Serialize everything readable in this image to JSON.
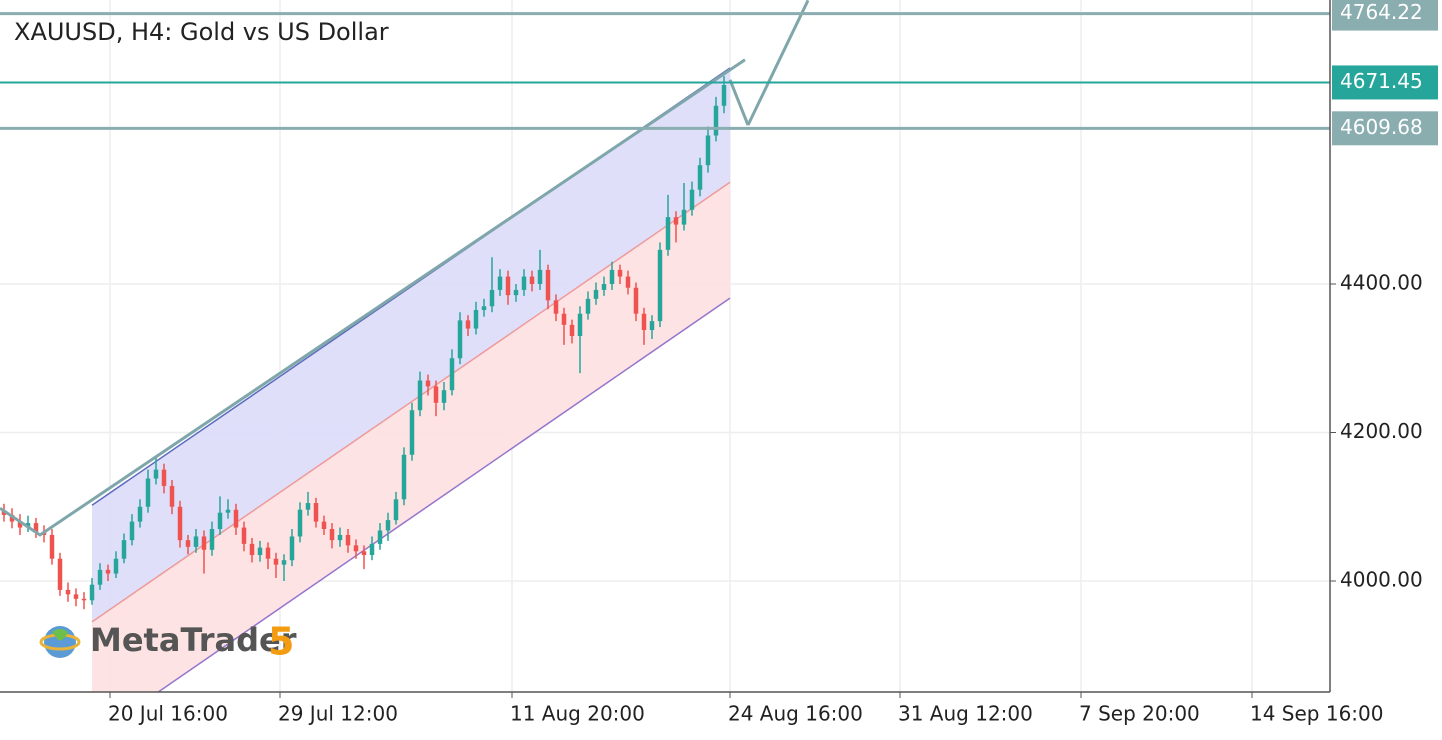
{
  "chart_data": {
    "type": "candlestick",
    "title": "XAUUSD, H4: Gold vs US Dollar",
    "logo": {
      "text": "MetaTrader",
      "number": "5"
    },
    "up_color": "#26a69a",
    "down_color": "#ef5350",
    "grid": true,
    "ylim": [
      3850.5,
      4782.5
    ],
    "yticks": [
      {
        "value": 4000,
        "label": "4000.00"
      },
      {
        "value": 4200,
        "label": "4200.00"
      },
      {
        "value": 4400,
        "label": "4400.00"
      }
    ],
    "xlim": [
      0,
      166.25
    ],
    "xticks": [
      {
        "value": 13.75,
        "label": "20 Jul 16:00"
      },
      {
        "value": 35,
        "label": "29 Jul 12:00"
      },
      {
        "value": 64,
        "label": "11 Aug 20:00"
      },
      {
        "value": 91.25,
        "label": "24 Aug 16:00"
      },
      {
        "value": 112.5,
        "label": "31 Aug 12:00"
      },
      {
        "value": 135.125,
        "label": "7 Sep 20:00"
      },
      {
        "value": 156.5,
        "label": "14 Sep 16:00"
      }
    ],
    "ohlc": [
      [
        4095,
        4104,
        4080,
        4089
      ],
      [
        4089,
        4098,
        4071,
        4080
      ],
      [
        4080,
        4090,
        4062,
        4072
      ],
      [
        4072,
        4088,
        4066,
        4078
      ],
      [
        4078,
        4085,
        4058,
        4066
      ],
      [
        4066,
        4075,
        4052,
        4062
      ],
      [
        4062,
        4070,
        4022,
        4030
      ],
      [
        4030,
        4038,
        3980,
        3988
      ],
      [
        3988,
        3998,
        3972,
        3982
      ],
      [
        3982,
        3990,
        3966,
        3976
      ],
      [
        3976,
        3985,
        3962,
        3974
      ],
      [
        3974,
        4004,
        3968,
        3995
      ],
      [
        3995,
        4024,
        3988,
        4015
      ],
      [
        4015,
        4022,
        4000,
        4010
      ],
      [
        4010,
        4040,
        4004,
        4030
      ],
      [
        4030,
        4064,
        4024,
        4055
      ],
      [
        4055,
        4090,
        4048,
        4080
      ],
      [
        4080,
        4110,
        4072,
        4100
      ],
      [
        4100,
        4150,
        4092,
        4138
      ],
      [
        4138,
        4166,
        4130,
        4150
      ],
      [
        4150,
        4158,
        4118,
        4128
      ],
      [
        4128,
        4136,
        4090,
        4100
      ],
      [
        4100,
        4108,
        4045,
        4055
      ],
      [
        4055,
        4062,
        4036,
        4046
      ],
      [
        4046,
        4070,
        4038,
        4060
      ],
      [
        4060,
        4068,
        4010,
        4042
      ],
      [
        4042,
        4080,
        4034,
        4070
      ],
      [
        4070,
        4114,
        4062,
        4092
      ],
      [
        4092,
        4110,
        4084,
        4096
      ],
      [
        4096,
        4104,
        4062,
        4072
      ],
      [
        4072,
        4080,
        4040,
        4050
      ],
      [
        4050,
        4058,
        4025,
        4035
      ],
      [
        4035,
        4054,
        4026,
        4045
      ],
      [
        4045,
        4052,
        4016,
        4030
      ],
      [
        4030,
        4038,
        4004,
        4022
      ],
      [
        4022,
        4036,
        4000,
        4028
      ],
      [
        4028,
        4070,
        4020,
        4060
      ],
      [
        4060,
        4106,
        4052,
        4096
      ],
      [
        4096,
        4120,
        4088,
        4105
      ],
      [
        4105,
        4112,
        4072,
        4080
      ],
      [
        4080,
        4088,
        4062,
        4070
      ],
      [
        4070,
        4078,
        4044,
        4055
      ],
      [
        4055,
        4072,
        4046,
        4062
      ],
      [
        4062,
        4070,
        4038,
        4048
      ],
      [
        4048,
        4056,
        4030,
        4040
      ],
      [
        4040,
        4048,
        4016,
        4035
      ],
      [
        4035,
        4060,
        4028,
        4050
      ],
      [
        4050,
        4078,
        4042,
        4068
      ],
      [
        4068,
        4092,
        4054,
        4082
      ],
      [
        4082,
        4120,
        4076,
        4110
      ],
      [
        4110,
        4180,
        4102,
        4170
      ],
      [
        4170,
        4240,
        4162,
        4230
      ],
      [
        4230,
        4282,
        4222,
        4270
      ],
      [
        4270,
        4278,
        4250,
        4262
      ],
      [
        4262,
        4270,
        4222,
        4240
      ],
      [
        4240,
        4268,
        4230,
        4257
      ],
      [
        4257,
        4312,
        4250,
        4300
      ],
      [
        4300,
        4362,
        4292,
        4351
      ],
      [
        4351,
        4358,
        4330,
        4340
      ],
      [
        4340,
        4376,
        4332,
        4365
      ],
      [
        4365,
        4380,
        4356,
        4370
      ],
      [
        4370,
        4436,
        4362,
        4392
      ],
      [
        4392,
        4420,
        4384,
        4410
      ],
      [
        4410,
        4418,
        4372,
        4385
      ],
      [
        4385,
        4400,
        4376,
        4392
      ],
      [
        4392,
        4420,
        4384,
        4410
      ],
      [
        4410,
        4418,
        4390,
        4400
      ],
      [
        4400,
        4446,
        4392,
        4419
      ],
      [
        4419,
        4426,
        4366,
        4378
      ],
      [
        4378,
        4386,
        4350,
        4360
      ],
      [
        4360,
        4368,
        4318,
        4345
      ],
      [
        4345,
        4352,
        4320,
        4330
      ],
      [
        4330,
        4370,
        4280,
        4360
      ],
      [
        4360,
        4390,
        4352,
        4380
      ],
      [
        4380,
        4402,
        4372,
        4392
      ],
      [
        4392,
        4410,
        4384,
        4400
      ],
      [
        4400,
        4430,
        4392,
        4419
      ],
      [
        4419,
        4426,
        4400,
        4410
      ],
      [
        4410,
        4418,
        4386,
        4395
      ],
      [
        4395,
        4402,
        4350,
        4360
      ],
      [
        4360,
        4368,
        4318,
        4338
      ],
      [
        4338,
        4358,
        4326,
        4350
      ],
      [
        4350,
        4456,
        4342,
        4446
      ],
      [
        4446,
        4520,
        4438,
        4490
      ],
      [
        4490,
        4498,
        4456,
        4480
      ],
      [
        4480,
        4536,
        4472,
        4500
      ],
      [
        4500,
        4538,
        4492,
        4527
      ],
      [
        4527,
        4570,
        4518,
        4560
      ],
      [
        4560,
        4612,
        4550,
        4600
      ],
      [
        4600,
        4652,
        4592,
        4640
      ],
      [
        4640,
        4680,
        4630,
        4668
      ]
    ],
    "channel": {
      "x": [
        11.5,
        91.25
      ],
      "upper": [
        4102,
        4691
      ],
      "middle": [
        3945,
        4537
      ],
      "lower": [
        3789,
        4381
      ],
      "upper_color": "#5c6bc0",
      "middle_color": "#ef9a9a",
      "lower_color": "#9575cd",
      "upper_fill": "#dcdcfa",
      "lower_fill": "#fde0e0"
    },
    "trendlines": [
      {
        "x": [
          0,
          5,
          93.125
        ],
        "y": [
          4098,
          4062,
          4702
        ],
        "color": "#7fa6aa"
      },
      {
        "x": [
          101,
          93.5
        ],
        "y": [
          4782,
          4614
        ],
        "color": "#7fa6aa"
      },
      {
        "x": [
          91.25,
          93.5
        ],
        "y": [
          4675,
          4614
        ],
        "color": "#7fa6aa"
      }
    ],
    "price_lines": [
      {
        "value": 4764.22,
        "color": "#8aadb0",
        "width": 3
      },
      {
        "value": 4671.45,
        "color": "#26a69a",
        "width": 2
      },
      {
        "value": 4609.68,
        "color": "#8aadb0",
        "width": 3
      }
    ]
  }
}
